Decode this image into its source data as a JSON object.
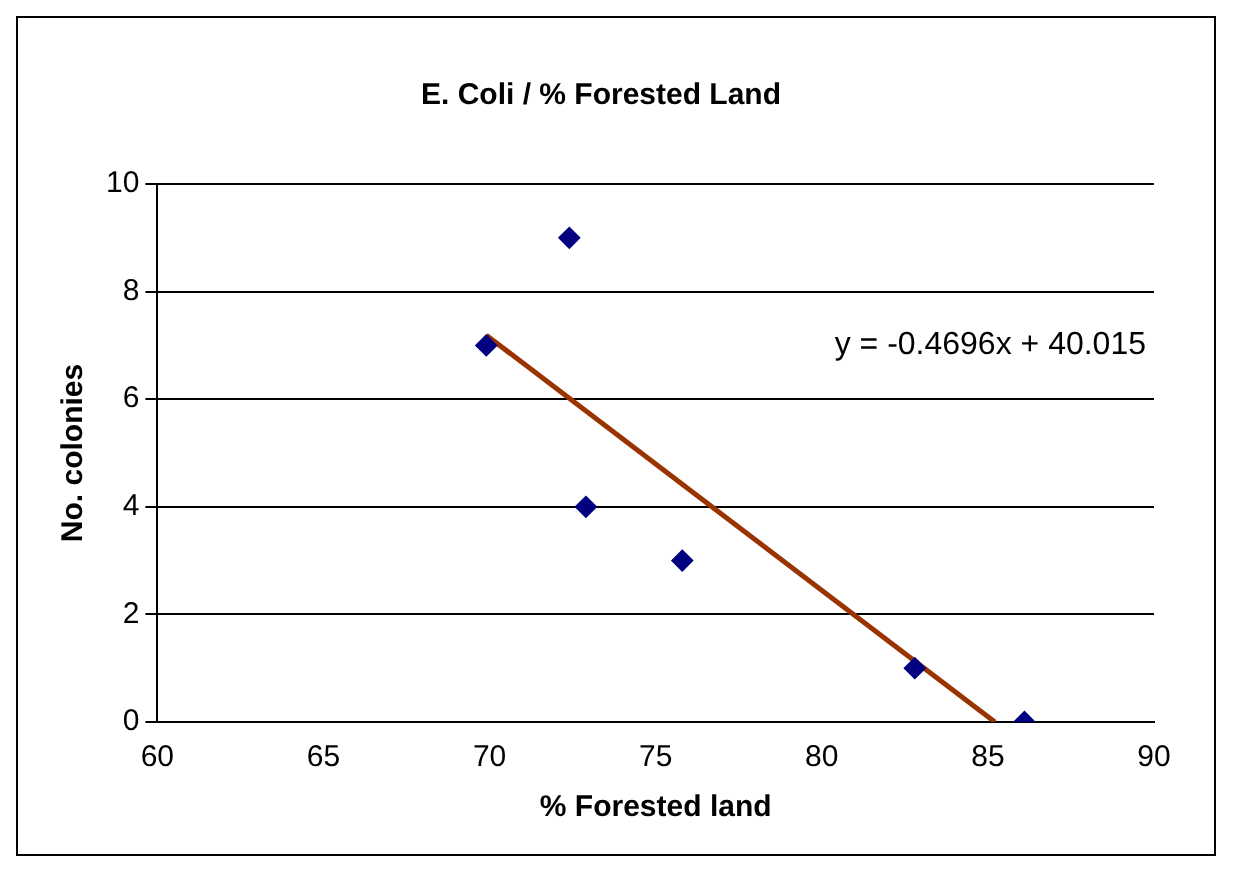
{
  "chart_data": {
    "type": "scatter",
    "title": "E. Coli / % Forested Land",
    "xlabel": "% Forested land",
    "ylabel": "No. colonies",
    "series": [
      {
        "color": "#000080",
        "marker": "diamond",
        "x": [
          69.9,
          72.4,
          72.9,
          75.8,
          82.8,
          86.1
        ],
        "values": [
          7,
          9,
          4,
          3,
          1,
          0
        ]
      },
      {
        "type": "line",
        "color": "#993300",
        "marker": "none",
        "x": [
          69.9,
          85.21
        ],
        "values": [
          7.19,
          0
        ]
      }
    ],
    "annotations": [
      "y = -0.4696x + 40.015"
    ],
    "xlim": [
      60,
      90
    ],
    "xticks": [
      60,
      65,
      70,
      75,
      80,
      85,
      90
    ],
    "ylim": [
      0,
      10
    ],
    "yticks": [
      0,
      2,
      4,
      6,
      8,
      10
    ],
    "grid": "y",
    "legend": false
  }
}
